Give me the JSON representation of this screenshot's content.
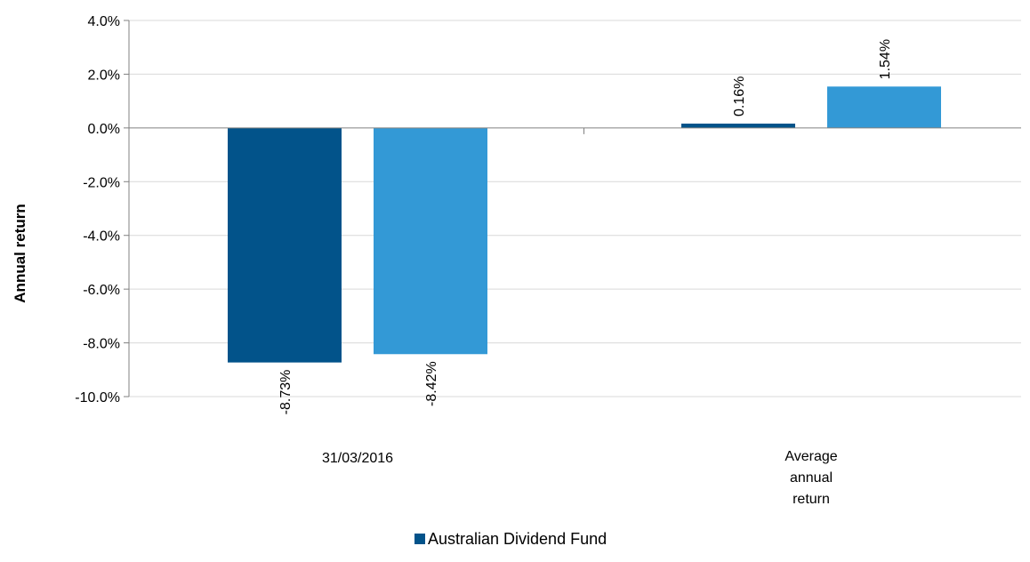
{
  "chart_data": {
    "type": "bar",
    "title": "",
    "xlabel": "",
    "ylabel": "Annual return",
    "ylim": [
      -10,
      4
    ],
    "y_ticks": [
      4,
      2,
      0,
      -2,
      -4,
      -6,
      -8,
      -10
    ],
    "y_tick_labels": [
      "4.0%",
      "2.0%",
      "0.0%",
      "-2.0%",
      "-4.0%",
      "-6.0%",
      "-8.0%",
      "-10.0%"
    ],
    "y_unit": "%",
    "grid": true,
    "categories": [
      "31/03/2016",
      "Average annual return"
    ],
    "category_label_lines": [
      [
        "31/03/2016"
      ],
      [
        "Average",
        "annual",
        "return"
      ]
    ],
    "series": [
      {
        "name": "Australian Dividend Fund",
        "values": [
          -8.73,
          0.16
        ],
        "labels": [
          "-8.73%",
          "0.16%"
        ],
        "color": "#02538a"
      },
      {
        "name": "",
        "values": [
          -8.42,
          1.54
        ],
        "labels": [
          "-8.42%",
          "1.54%"
        ],
        "color": "#3399d6"
      }
    ],
    "legend": {
      "placement": "bottom-center",
      "entries": [
        {
          "name": "Australian Dividend Fund",
          "color": "#02538a"
        }
      ]
    },
    "colors": {
      "grid": "#d9d9d9",
      "axis": "#808080"
    }
  }
}
